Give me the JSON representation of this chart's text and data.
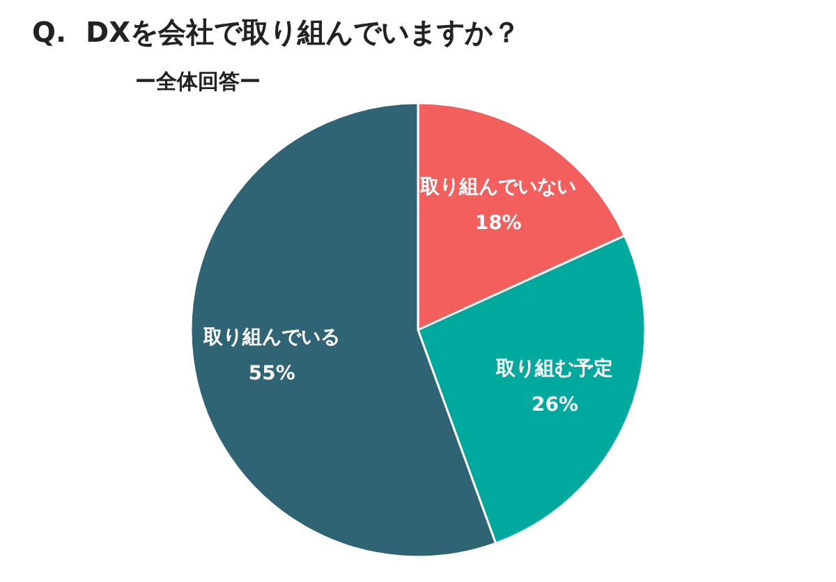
{
  "chart_data": {
    "type": "pie",
    "title": "Q.  DXを会社で取り組んでいますか？",
    "subtitle": "ー全体回答ー",
    "categories": [
      "取り組んでいない",
      "取り組む予定",
      "取り組んでいる"
    ],
    "values": [
      18,
      26,
      55
    ],
    "value_labels": [
      "18%",
      "26%",
      "55%"
    ],
    "colors": [
      "#f25f5c",
      "#00a99d",
      "#2e6474"
    ],
    "legend": false
  }
}
